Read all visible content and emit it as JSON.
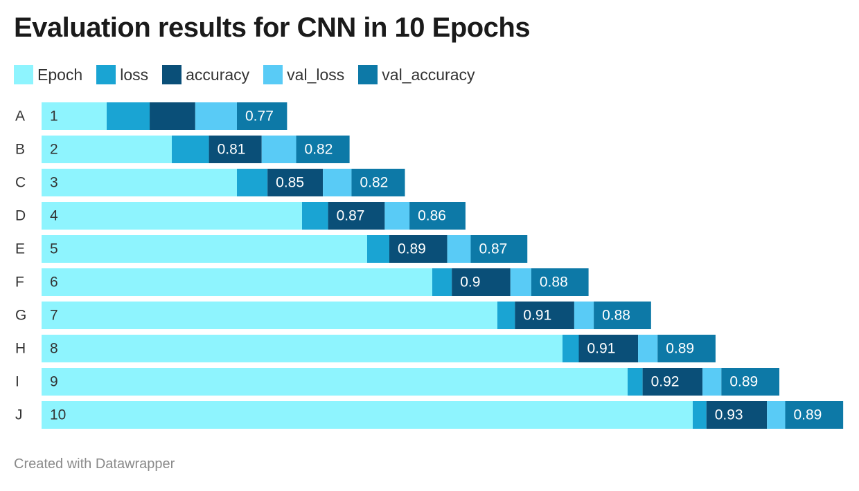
{
  "title": "Evaluation results for CNN in 10 Epochs",
  "footer": "Created with Datawrapper",
  "chart_data": {
    "type": "bar",
    "orientation": "horizontal",
    "stacked": true,
    "title": "Evaluation results for CNN in 10 Epochs",
    "categories": [
      "A",
      "B",
      "C",
      "D",
      "E",
      "F",
      "G",
      "H",
      "I",
      "J"
    ],
    "series": [
      {
        "name": "Epoch",
        "color": "#8ef4fe",
        "values": [
          1,
          2,
          3,
          4,
          5,
          6,
          7,
          8,
          9,
          10
        ]
      },
      {
        "name": "loss",
        "color": "#1aa4d3",
        "values": [
          0.66,
          0.57,
          0.47,
          0.4,
          0.34,
          0.3,
          0.27,
          0.25,
          0.23,
          0.21
        ]
      },
      {
        "name": "accuracy",
        "color": "#0a4f78",
        "values": [
          0.7,
          0.81,
          0.85,
          0.87,
          0.89,
          0.9,
          0.91,
          0.91,
          0.92,
          0.93
        ]
      },
      {
        "name": "val_loss",
        "color": "#59cbf6",
        "values": [
          0.64,
          0.53,
          0.44,
          0.38,
          0.36,
          0.32,
          0.3,
          0.3,
          0.29,
          0.28
        ]
      },
      {
        "name": "val_accuracy",
        "color": "#0d79a7",
        "values": [
          0.77,
          0.82,
          0.82,
          0.86,
          0.87,
          0.88,
          0.88,
          0.89,
          0.89,
          0.89
        ]
      }
    ],
    "labels": [
      [
        "1",
        "",
        "",
        "",
        "0.77"
      ],
      [
        "2",
        "",
        "0.81",
        "",
        "0.82"
      ],
      [
        "3",
        "",
        "0.85",
        "",
        "0.82"
      ],
      [
        "4",
        "",
        "0.87",
        "",
        "0.86"
      ],
      [
        "5",
        "",
        "0.89",
        "",
        "0.87"
      ],
      [
        "6",
        "",
        "0.9",
        "",
        "0.88"
      ],
      [
        "7",
        "",
        "0.91",
        "",
        "0.88"
      ],
      [
        "8",
        "",
        "0.91",
        "",
        "0.89"
      ],
      [
        "9",
        "",
        "0.92",
        "",
        "0.89"
      ],
      [
        "10",
        "",
        "0.93",
        "",
        "0.89"
      ]
    ],
    "legend_position": "top-left",
    "grid": false
  }
}
